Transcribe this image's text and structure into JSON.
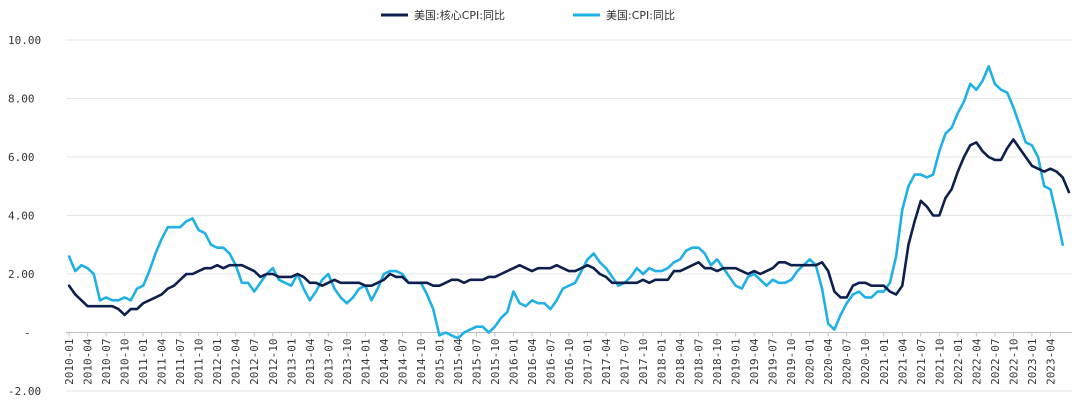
{
  "chart_data": {
    "type": "line",
    "title": "",
    "xlabel": "",
    "ylabel": "",
    "ylim": [
      -2,
      10
    ],
    "y_ticks": [
      {
        "value": 10,
        "label": "10.00"
      },
      {
        "value": 8,
        "label": "8.00"
      },
      {
        "value": 6,
        "label": "6.00"
      },
      {
        "value": 4,
        "label": "4.00"
      },
      {
        "value": 2,
        "label": "2.00"
      },
      {
        "value": 0,
        "label": "-"
      },
      {
        "value": -2,
        "label": "-2.00"
      }
    ],
    "x_start": "2010-01",
    "x_tick_labels": [
      "2010-01",
      "2010-04",
      "2010-07",
      "2010-10",
      "2011-01",
      "2011-04",
      "2011-07",
      "2011-10",
      "2012-01",
      "2012-04",
      "2012-07",
      "2012-10",
      "2013-01",
      "2013-04",
      "2013-07",
      "2013-10",
      "2014-01",
      "2014-04",
      "2014-07",
      "2014-10",
      "2015-01",
      "2015-04",
      "2015-07",
      "2015-10",
      "2016-01",
      "2016-04",
      "2016-07",
      "2016-10",
      "2017-01",
      "2017-04",
      "2017-07",
      "2017-10",
      "2018-01",
      "2018-04",
      "2018-07",
      "2018-10",
      "2019-01",
      "2019-04",
      "2019-07",
      "2019-10",
      "2020-01",
      "2020-04",
      "2020-07",
      "2020-10",
      "2021-01",
      "2021-04",
      "2021-07",
      "2021-10",
      "2022-01",
      "2022-04",
      "2022-07",
      "2022-10",
      "2023-01",
      "2023-04"
    ],
    "grid": true,
    "legend_position": "top-center",
    "series": [
      {
        "name": "美国:核心CPI:同比",
        "color": "#0d1f4c",
        "values": [
          1.6,
          1.3,
          1.1,
          0.9,
          0.9,
          0.9,
          0.9,
          0.9,
          0.8,
          0.6,
          0.8,
          0.8,
          1.0,
          1.1,
          1.2,
          1.3,
          1.5,
          1.6,
          1.8,
          2.0,
          2.0,
          2.1,
          2.2,
          2.2,
          2.3,
          2.2,
          2.3,
          2.3,
          2.3,
          2.2,
          2.1,
          1.9,
          2.0,
          2.0,
          1.9,
          1.9,
          1.9,
          2.0,
          1.9,
          1.7,
          1.7,
          1.6,
          1.7,
          1.8,
          1.7,
          1.7,
          1.7,
          1.7,
          1.6,
          1.6,
          1.7,
          1.8,
          2.0,
          1.9,
          1.9,
          1.7,
          1.7,
          1.7,
          1.7,
          1.6,
          1.6,
          1.7,
          1.8,
          1.8,
          1.7,
          1.8,
          1.8,
          1.8,
          1.9,
          1.9,
          2.0,
          2.1,
          2.2,
          2.3,
          2.2,
          2.1,
          2.2,
          2.2,
          2.2,
          2.3,
          2.2,
          2.1,
          2.1,
          2.2,
          2.3,
          2.2,
          2.0,
          1.9,
          1.7,
          1.7,
          1.7,
          1.7,
          1.7,
          1.8,
          1.7,
          1.8,
          1.8,
          1.8,
          2.1,
          2.1,
          2.2,
          2.3,
          2.4,
          2.2,
          2.2,
          2.1,
          2.2,
          2.2,
          2.2,
          2.1,
          2.0,
          2.1,
          2.0,
          2.1,
          2.2,
          2.4,
          2.4,
          2.3,
          2.3,
          2.3,
          2.3,
          2.3,
          2.4,
          2.1,
          1.4,
          1.2,
          1.2,
          1.6,
          1.7,
          1.7,
          1.6,
          1.6,
          1.6,
          1.4,
          1.3,
          1.6,
          3.0,
          3.8,
          4.5,
          4.3,
          4.0,
          4.0,
          4.6,
          4.9,
          5.5,
          6.0,
          6.4,
          6.5,
          6.2,
          6.0,
          5.9,
          5.9,
          6.3,
          6.6,
          6.3,
          6.0,
          5.7,
          5.6,
          5.5,
          5.6,
          5.5,
          5.3,
          4.8
        ]
      },
      {
        "name": "美国:CPI:同比",
        "color": "#1fb0e6",
        "values": [
          2.6,
          2.1,
          2.3,
          2.2,
          2.0,
          1.1,
          1.2,
          1.1,
          1.1,
          1.2,
          1.1,
          1.5,
          1.6,
          2.1,
          2.7,
          3.2,
          3.6,
          3.6,
          3.6,
          3.8,
          3.9,
          3.5,
          3.4,
          3.0,
          2.9,
          2.9,
          2.7,
          2.3,
          1.7,
          1.7,
          1.4,
          1.7,
          2.0,
          2.2,
          1.8,
          1.7,
          1.6,
          2.0,
          1.5,
          1.1,
          1.4,
          1.8,
          2.0,
          1.5,
          1.2,
          1.0,
          1.2,
          1.5,
          1.6,
          1.1,
          1.5,
          2.0,
          2.1,
          2.1,
          2.0,
          1.7,
          1.7,
          1.7,
          1.3,
          0.8,
          -0.1,
          0.0,
          -0.1,
          -0.2,
          0.0,
          0.1,
          0.2,
          0.2,
          0.0,
          0.2,
          0.5,
          0.7,
          1.4,
          1.0,
          0.9,
          1.1,
          1.0,
          1.0,
          0.8,
          1.1,
          1.5,
          1.6,
          1.7,
          2.1,
          2.5,
          2.7,
          2.4,
          2.2,
          1.9,
          1.6,
          1.7,
          1.9,
          2.2,
          2.0,
          2.2,
          2.1,
          2.1,
          2.2,
          2.4,
          2.5,
          2.8,
          2.9,
          2.9,
          2.7,
          2.3,
          2.5,
          2.2,
          1.9,
          1.6,
          1.5,
          1.9,
          2.0,
          1.8,
          1.6,
          1.8,
          1.7,
          1.7,
          1.8,
          2.1,
          2.3,
          2.5,
          2.3,
          1.5,
          0.3,
          0.1,
          0.6,
          1.0,
          1.3,
          1.4,
          1.2,
          1.2,
          1.4,
          1.4,
          1.7,
          2.6,
          4.2,
          5.0,
          5.4,
          5.4,
          5.3,
          5.4,
          6.2,
          6.8,
          7.0,
          7.5,
          7.9,
          8.5,
          8.3,
          8.6,
          9.1,
          8.5,
          8.3,
          8.2,
          7.7,
          7.1,
          6.5,
          6.4,
          6.0,
          5.0,
          4.9,
          4.0,
          3.0
        ]
      }
    ]
  }
}
